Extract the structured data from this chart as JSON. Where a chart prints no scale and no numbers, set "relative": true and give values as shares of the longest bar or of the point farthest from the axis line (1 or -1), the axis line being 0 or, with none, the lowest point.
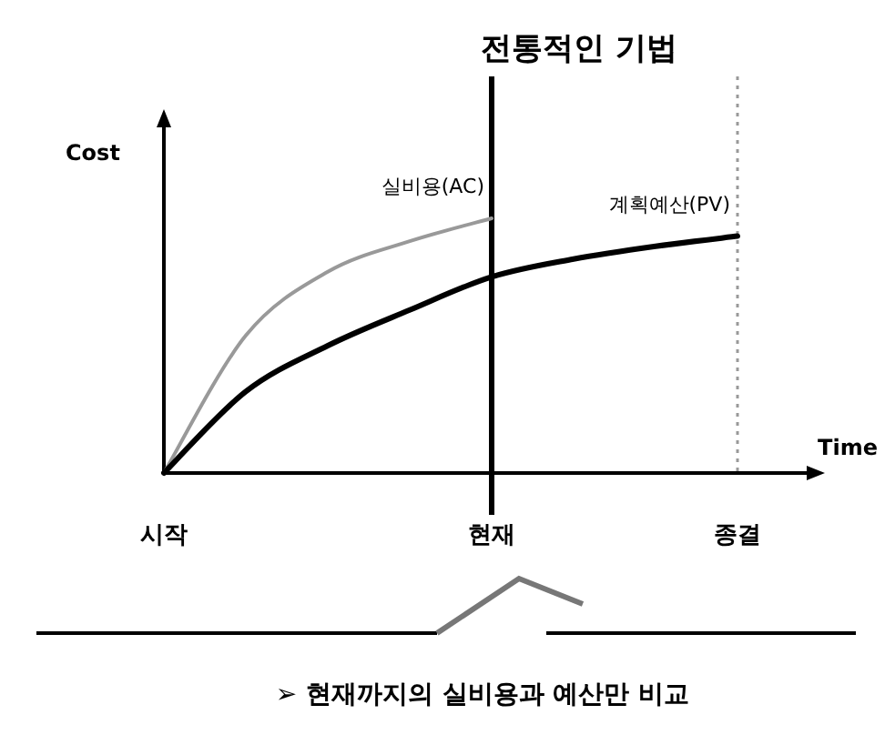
{
  "chart_data": {
    "type": "line",
    "relative": true,
    "title": "전통적인 기법",
    "xlabel": "Time",
    "ylabel": "Cost",
    "categories": [
      "시작",
      null,
      null,
      null,
      "현재",
      null,
      null,
      "종결"
    ],
    "series": [
      {
        "name": "실비용(AC)",
        "color": "#999999",
        "values": [
          0,
          0.54,
          0.79,
          0.91,
          1.0,
          null,
          null,
          null
        ]
      },
      {
        "name": "계획예산(PV)",
        "color": "#000000",
        "values": [
          0,
          0.32,
          0.5,
          0.64,
          0.77,
          0.84,
          0.89,
          0.93
        ]
      }
    ],
    "ref_lines": [
      {
        "axis": "x",
        "value": "현재",
        "color": "#000000",
        "line_style": "solid"
      },
      {
        "axis": "x",
        "value": "종결",
        "color": "#999999",
        "line_style": "dotted"
      }
    ],
    "annotations": [
      "➢ 현재까지의 실비용과 예산만 비교"
    ],
    "legend": false,
    "marker": "none",
    "line_style": "solid"
  }
}
